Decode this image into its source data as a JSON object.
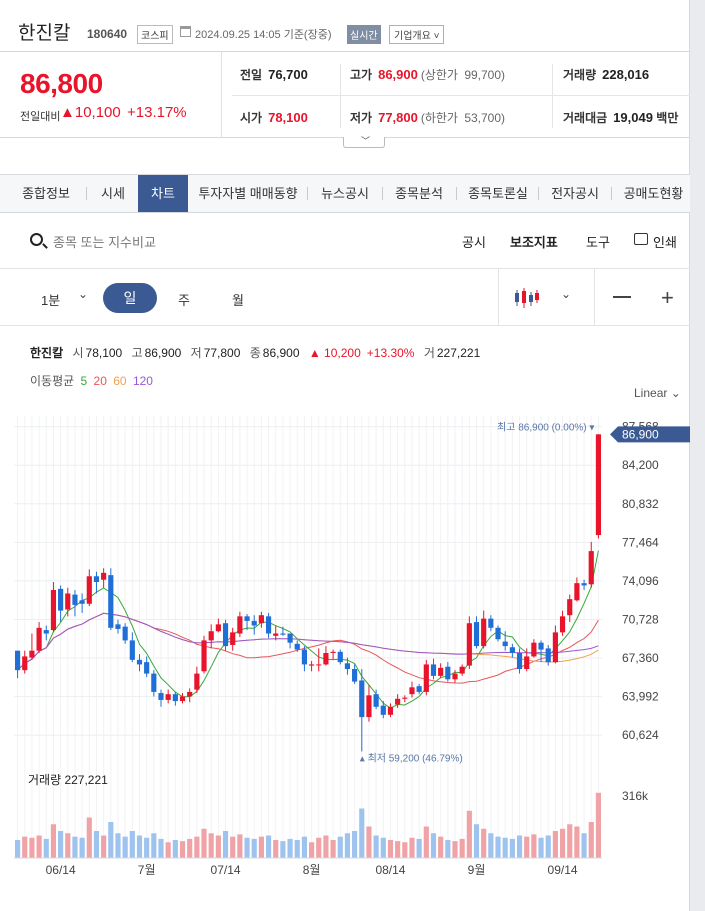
{
  "header": {
    "name": "한진칼",
    "code": "180640",
    "market": "코스피",
    "datetime": "2024.09.25 14:05 기준(장중)",
    "realtime": "실시간",
    "company_overview": "기업개요"
  },
  "price": {
    "current": "86,800",
    "change_label": "전일대비",
    "change": "10,100",
    "percent": "+13.17%",
    "prev_label": "전일",
    "prev": "76,700",
    "high_label": "고가",
    "high": "86,900",
    "upper_label": "(상한가",
    "upper": "99,700)",
    "volume_label": "거래량",
    "volume": "228,016",
    "open_label": "시가",
    "open": "78,100",
    "low_label": "저가",
    "low": "77,800",
    "lower_label": "(하한가",
    "lower": "53,700)",
    "amount_label": "거래대금",
    "amount": "19,049",
    "amount_unit": "백만"
  },
  "tabs": [
    "종합정보",
    "시세",
    "차트",
    "투자자별 매매동향",
    "뉴스공시",
    "종목분석",
    "종목토론실",
    "전자공시",
    "공매도현황"
  ],
  "active_tab": "차트",
  "search": {
    "placeholder": "종목 또는 지수비교",
    "links": [
      "공시",
      "보조지표",
      "도구",
      "인쇄"
    ]
  },
  "toolbar": {
    "interval": "1분",
    "day": "일",
    "week": "주",
    "month": "월"
  },
  "legend": {
    "name": "한진칼",
    "open_label": "시",
    "open": "78,100",
    "high_label": "고",
    "high": "86,900",
    "low_label": "저",
    "low": "77,800",
    "close_label": "종",
    "close": "86,900",
    "change": "▲ 10,200",
    "percent": "+13.30%",
    "volume_label": "거",
    "volume": "227,221"
  },
  "ma": {
    "label": "이동평균",
    "p5": "5",
    "p20": "20",
    "p60": "60",
    "p120": "120",
    "colors": {
      "p5": "#3aa83a",
      "p20": "#e8565a",
      "p60": "#f0a050",
      "p120": "#9b59d0"
    }
  },
  "scale_mode": "Linear",
  "chart_data": {
    "type": "candlestick",
    "y_ticks": [
      60624,
      63992,
      67360,
      70728,
      74096,
      77464,
      80832,
      84200,
      87568
    ],
    "y_tick_labels": [
      "60,624",
      "63,992",
      "67,360",
      "70,728",
      "74,096",
      "77,464",
      "80,832",
      "84,200",
      "87,568"
    ],
    "ylim": [
      59500,
      88500
    ],
    "x_labels": [
      "06/14",
      "7월",
      "07/14",
      "8월",
      "08/14",
      "9월",
      "09/14"
    ],
    "x_label_index": [
      6,
      18,
      29,
      41,
      52,
      64,
      76
    ],
    "current_price_label": "86,900",
    "max_annotation": "최고 86,900 (0.00%)",
    "min_annotation": "최저 59,200 (46.79%)",
    "volume_label": "거래량 227,221",
    "volume_tick": "316k",
    "volume_max": 400,
    "candles": [
      [
        68000,
        66300,
        68000,
        65600
      ],
      [
        66300,
        67500,
        68000,
        66000
      ],
      [
        67400,
        68000,
        69500,
        67200
      ],
      [
        68000,
        70000,
        70500,
        67800
      ],
      [
        69800,
        69500,
        70200,
        68900
      ],
      [
        69800,
        73300,
        74000,
        69600
      ],
      [
        73400,
        71500,
        73700,
        70500
      ],
      [
        71600,
        73000,
        73500,
        71000
      ],
      [
        72900,
        72000,
        73300,
        71000
      ],
      [
        72400,
        72100,
        73000,
        71300
      ],
      [
        72100,
        74500,
        75100,
        71900
      ],
      [
        74500,
        74000,
        74900,
        73000
      ],
      [
        74200,
        74800,
        75200,
        73500
      ],
      [
        74600,
        70000,
        75200,
        69800
      ],
      [
        70300,
        69900,
        70700,
        69500
      ],
      [
        70100,
        68900,
        70400,
        68600
      ],
      [
        68900,
        67200,
        69600,
        67000
      ],
      [
        67200,
        66800,
        67700,
        66200
      ],
      [
        67000,
        66000,
        67500,
        65700
      ],
      [
        66000,
        64400,
        66300,
        64000
      ],
      [
        64300,
        63700,
        64600,
        63100
      ],
      [
        63700,
        64200,
        64600,
        63400
      ],
      [
        64200,
        63600,
        64400,
        63200
      ],
      [
        63600,
        64000,
        64300,
        63400
      ],
      [
        64000,
        64400,
        64700,
        63500
      ],
      [
        64600,
        66000,
        66600,
        64300
      ],
      [
        66200,
        68900,
        69300,
        66000
      ],
      [
        68900,
        69700,
        70300,
        68200
      ],
      [
        69700,
        70300,
        70800,
        69600
      ],
      [
        70400,
        68400,
        70700,
        68000
      ],
      [
        68500,
        69600,
        70000,
        68000
      ],
      [
        69500,
        71000,
        71400,
        69200
      ],
      [
        71000,
        70600,
        71200,
        69800
      ],
      [
        70600,
        70200,
        71100,
        69400
      ],
      [
        70400,
        71100,
        71400,
        70000
      ],
      [
        71000,
        69500,
        71300,
        69100
      ],
      [
        69300,
        69500,
        70200,
        68900
      ],
      [
        69500,
        69400,
        70100,
        69300
      ],
      [
        69500,
        68700,
        69500,
        68200
      ],
      [
        68600,
        68100,
        68900,
        67900
      ],
      [
        68100,
        66800,
        68400,
        66200
      ],
      [
        66700,
        66800,
        67100,
        66200
      ],
      [
        66800,
        66800,
        68200,
        66200
      ],
      [
        66800,
        67800,
        68400,
        66700
      ],
      [
        67800,
        67900,
        68100,
        67200
      ],
      [
        67900,
        67000,
        68100,
        66800
      ],
      [
        66900,
        66400,
        67400,
        65900
      ],
      [
        66400,
        65300,
        66800,
        65100
      ],
      [
        65400,
        62200,
        66400,
        59200
      ],
      [
        62200,
        64100,
        65000,
        61800
      ],
      [
        64200,
        63100,
        64600,
        62900
      ],
      [
        63200,
        62400,
        63600,
        62100
      ],
      [
        62400,
        63100,
        63400,
        62200
      ],
      [
        63300,
        63800,
        64200,
        63000
      ],
      [
        63800,
        63900,
        64100,
        63500
      ],
      [
        64200,
        64800,
        65300,
        63900
      ],
      [
        64900,
        64400,
        65100,
        64200
      ],
      [
        64400,
        66800,
        67200,
        64100
      ],
      [
        66800,
        65800,
        67300,
        65500
      ],
      [
        65800,
        66500,
        66900,
        65600
      ],
      [
        66600,
        65500,
        67000,
        65300
      ],
      [
        65500,
        66000,
        66300,
        65200
      ],
      [
        66000,
        66600,
        66800,
        65800
      ],
      [
        66700,
        70400,
        71000,
        66400
      ],
      [
        70500,
        68400,
        71000,
        68200
      ],
      [
        68400,
        70800,
        71500,
        68200
      ],
      [
        70800,
        70000,
        71100,
        69700
      ],
      [
        70000,
        69000,
        70200,
        68800
      ],
      [
        68800,
        68400,
        69700,
        68000
      ],
      [
        68300,
        67800,
        68600,
        67400
      ],
      [
        67800,
        66400,
        68200,
        66000
      ],
      [
        66400,
        67500,
        68200,
        66200
      ],
      [
        67500,
        68700,
        69000,
        67400
      ],
      [
        68700,
        68100,
        68900,
        67000
      ],
      [
        68200,
        67000,
        68500,
        66700
      ],
      [
        67000,
        69600,
        70200,
        66900
      ],
      [
        69600,
        71000,
        71500,
        69300
      ],
      [
        71100,
        72500,
        72900,
        70500
      ],
      [
        72400,
        73900,
        74400,
        72300
      ],
      [
        73900,
        73700,
        74200,
        73300
      ],
      [
        73800,
        76700,
        77500,
        73500
      ],
      [
        78100,
        86900,
        86900,
        77800
      ]
    ],
    "volumes": [
      80,
      95,
      90,
      100,
      85,
      150,
      120,
      110,
      95,
      90,
      180,
      120,
      100,
      160,
      110,
      95,
      120,
      100,
      90,
      110,
      85,
      70,
      80,
      75,
      85,
      95,
      130,
      110,
      100,
      120,
      95,
      105,
      90,
      85,
      95,
      100,
      80,
      75,
      85,
      80,
      95,
      70,
      90,
      100,
      80,
      95,
      110,
      120,
      220,
      140,
      100,
      90,
      80,
      75,
      70,
      90,
      85,
      140,
      110,
      95,
      80,
      75,
      85,
      210,
      150,
      130,
      110,
      95,
      90,
      85,
      100,
      95,
      105,
      90,
      100,
      120,
      130,
      150,
      140,
      110,
      160,
      290
    ]
  }
}
